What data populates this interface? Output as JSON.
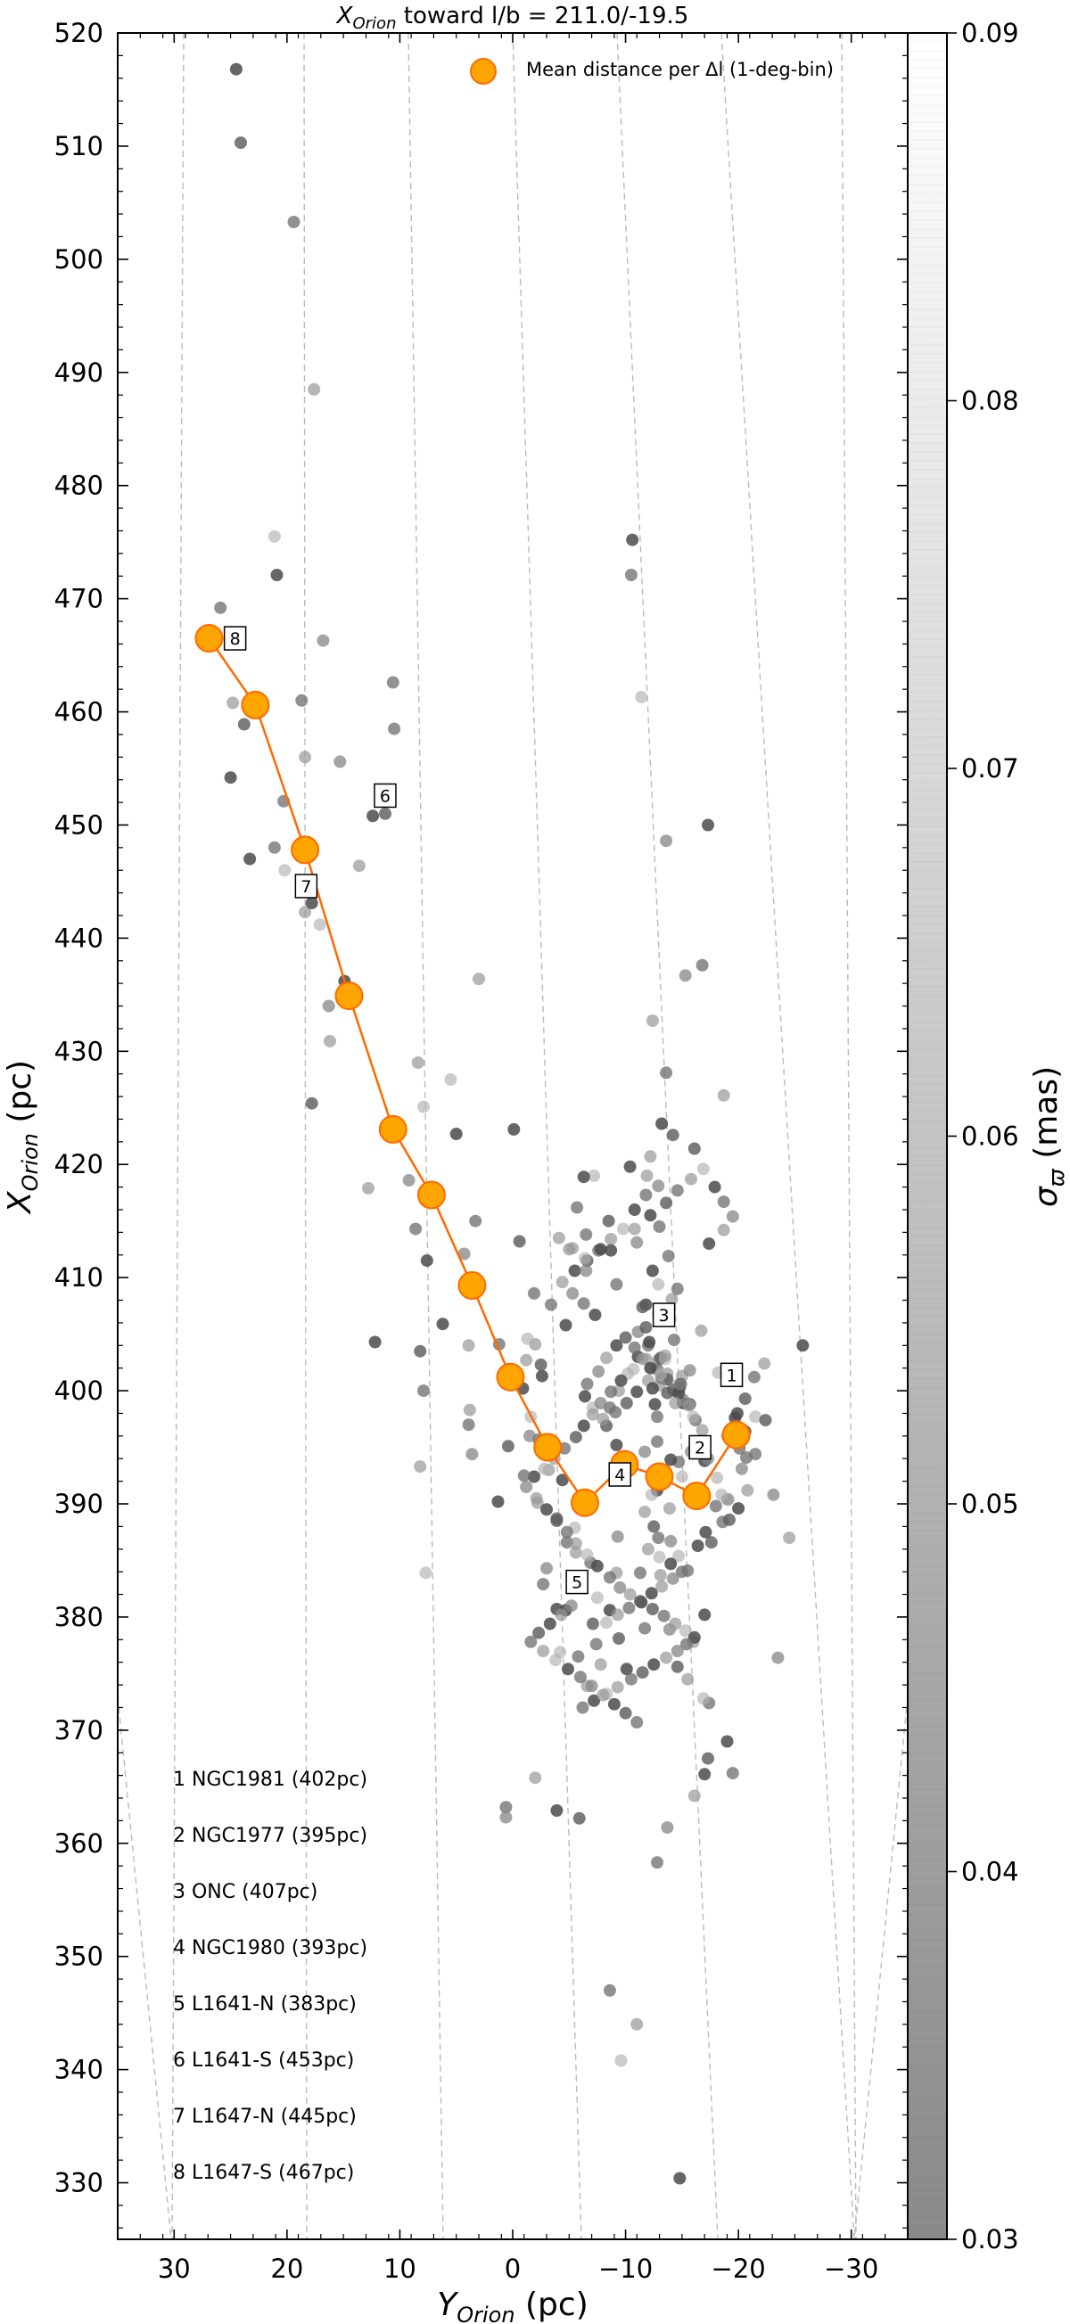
{
  "chart_data": {
    "type": "scatter",
    "title": "X_Orion toward l/b = 211.0/-19.5",
    "title_parts": {
      "pre": "X",
      "sub": "Orion",
      "post": " toward l/b = 211.0/-19.5"
    },
    "xlabel": "Y_Orion (pc)",
    "xlabel_parts": {
      "pre": "Y",
      "sub": "Orion",
      "post": " (pc)"
    },
    "ylabel": "X_Orion (pc)",
    "ylabel_parts": {
      "pre": "X",
      "sub": "Orion",
      "post": " (pc)"
    },
    "xlim": [
      35,
      -35
    ],
    "ylim": [
      325,
      520
    ],
    "x_ticks": [
      30,
      20,
      10,
      0,
      -10,
      -20,
      -30
    ],
    "x_tick_labels": [
      "30",
      "20",
      "10",
      "0",
      "−10",
      "−20",
      "−30"
    ],
    "y_ticks": [
      330,
      340,
      350,
      360,
      370,
      380,
      390,
      400,
      410,
      420,
      430,
      440,
      450,
      460,
      470,
      480,
      490,
      500,
      510,
      520
    ],
    "y_tick_labels": [
      "330",
      "340",
      "350",
      "360",
      "370",
      "380",
      "390",
      "400",
      "410",
      "420",
      "430",
      "440",
      "450",
      "460",
      "470",
      "480",
      "490",
      "500",
      "510",
      "520"
    ],
    "grid": false,
    "legend": {
      "position": "top-right",
      "label": "Mean distance per Δl (1-deg-bin)"
    },
    "colorbar": {
      "label": "σ_ϖ (mas)",
      "label_sym": "σ",
      "label_sub": "ϖ",
      "label_post": " (mas)",
      "range": [
        0.03,
        0.09
      ],
      "ticks": [
        0.03,
        0.04,
        0.05,
        0.06,
        0.07,
        0.08,
        0.09
      ],
      "tick_labels": [
        "0.03",
        "0.04",
        "0.05",
        "0.06",
        "0.07",
        "0.08",
        "0.09"
      ],
      "color_low": "#8a8a8a",
      "color_high": "#ffffff"
    },
    "mean_series": {
      "name": "Mean distance per Δl (1-deg-bin)",
      "color": "#ffa500",
      "edge_color": "#ff6a00",
      "line_color": "#ff6a00",
      "x": [
        26.9,
        22.8,
        18.4,
        14.5,
        10.6,
        7.2,
        3.6,
        0.2,
        -3.1,
        -6.4,
        -9.9,
        -13.0,
        -16.3,
        -19.8
      ],
      "y": [
        466.5,
        460.6,
        447.8,
        434.9,
        423.1,
        417.3,
        409.3,
        401.2,
        395.0,
        390.1,
        393.5,
        392.4,
        390.7,
        396.1
      ]
    },
    "region_markers": [
      {
        "id": "1",
        "x": -19.4,
        "y": 401.4
      },
      {
        "id": "2",
        "x": -16.6,
        "y": 395.0
      },
      {
        "id": "3",
        "x": -13.4,
        "y": 406.7
      },
      {
        "id": "4",
        "x": -9.5,
        "y": 392.6
      },
      {
        "id": "5",
        "x": -5.7,
        "y": 383.1
      },
      {
        "id": "6",
        "x": 11.3,
        "y": 452.6
      },
      {
        "id": "7",
        "x": 18.3,
        "y": 444.6
      },
      {
        "id": "8",
        "x": 24.6,
        "y": 466.5
      }
    ],
    "region_list": [
      "1 NGC1981 (402pc)",
      "2 NGC1977 (395pc)",
      "3 ONC (407pc)",
      "4 NGC1980 (393pc)",
      "5 L1641-N (383pc)",
      "6 L1641-S (453pc)",
      "7 L1647-N (445pc)",
      "8 L1647-S (467pc)"
    ],
    "stars": {
      "x": [
        24.5,
        24.1,
        19.4,
        17.6,
        21.1,
        20.9,
        25.9,
        16.8,
        24.8,
        25.0,
        23.8,
        18.7,
        18.4,
        20.2,
        23.3,
        21.1,
        15.3,
        13.6,
        12.4,
        11.3,
        10.6,
        18.4,
        17.1,
        17.8,
        20.3,
        16.3,
        16.2,
        14.9,
        17.8,
        10.5,
        8.4,
        7.9,
        7.6,
        8.6,
        9.2,
        12.8,
        12.2,
        8.2,
        7.9,
        8.2,
        7.7,
        6.2,
        3.9,
        3.6,
        3.8,
        1.3,
        0.4,
        -2.3,
        3.0,
        5.5,
        5.0,
        3.3,
        4.3,
        3.9,
        -0.1,
        -0.6,
        -1.9,
        -1.2,
        -1.6,
        -2.6,
        -3.4,
        -1.5,
        -3.2,
        -4.4,
        -3.9,
        -4.8,
        -2.2,
        -5.5,
        -6.9,
        -6.9,
        -9.3,
        -9.2,
        -8.6,
        -9.4,
        -7.4,
        -6.6,
        -4.2,
        -3.9,
        -2.7,
        -3.0,
        -5.6,
        -4.7,
        -7.1,
        -5.8,
        -7.8,
        -7.5,
        -10.1,
        -11.3,
        -13.9,
        -16.0,
        -17.0,
        -14.6,
        -11.7,
        -13.1,
        -14.7,
        -16.4,
        -15.5,
        -14.0,
        -13.9,
        -12.8,
        -12.5,
        -12.9,
        -11.7,
        -12.3,
        -13.1,
        -14.7,
        -15.8,
        -16.4,
        -17.1,
        -17.6,
        -18.6,
        -19.1,
        -18.1,
        -17.0,
        -16.6,
        -17.3,
        -19.0,
        -19.7,
        -20.6,
        -21.4,
        -22.3,
        -21.5,
        -20.6,
        -20.1,
        -20.3,
        -20.8,
        -20.0,
        -19.2,
        -18.0,
        -16.5,
        -15.0,
        -14.0,
        -12.8,
        -11.7,
        -10.3,
        -9.2,
        -8.3,
        -8.6,
        -9.4,
        -10.2,
        -11.1,
        -12.0,
        -12.9,
        -13.7,
        -14.8,
        -15.7,
        -16.2,
        -16.8,
        -16.0,
        -15.1,
        -14.3,
        -13.3,
        -12.0,
        -11.0,
        -10.1,
        -9.1,
        -8.0,
        -7.1,
        -6.4,
        -6.6,
        -7.6,
        -8.3,
        -9.2,
        -10.0,
        -10.8,
        -11.5,
        -12.3,
        -13.2,
        -14.2,
        -15.1,
        -15.6,
        -14.7,
        -13.7,
        -12.8,
        -11.8,
        -10.7,
        -9.6,
        -8.7,
        -7.8,
        -7.1,
        -6.3,
        -5.6,
        -4.6,
        -3.7,
        -2.8,
        -1.9,
        -1.0,
        -1.2,
        -2.1,
        -3.0,
        -3.9,
        -4.8,
        -5.6,
        -6.6,
        -7.5,
        -8.6,
        -9.5,
        -10.4,
        -11.4,
        -12.4,
        -13.4,
        -14.4,
        -15.3,
        -16.1,
        -15.4,
        -14.6,
        -13.6,
        -12.5,
        -11.5,
        -10.5,
        -9.3,
        -8.3,
        -7.2,
        -6.2,
        -5.2,
        -4.3,
        -3.3,
        -2.3,
        -1.6,
        -2.7,
        -3.8,
        -4.9,
        -6.0,
        -7.0,
        -8.0,
        -9.0,
        -10.0,
        -11.0,
        -12.0,
        -13.0,
        -14.0,
        -15.0,
        -14.2,
        -13.2,
        -12.3,
        -11.3,
        -10.3,
        -9.3,
        -8.3,
        -7.3,
        -6.3,
        -5.3,
        -4.4,
        -5.5,
        -6.6,
        -7.6,
        -8.7,
        -9.8,
        -10.8,
        -11.8,
        -12.9,
        -11.9,
        -10.4,
        -8.5,
        -6.5,
        -5.3,
        -6.4,
        -7.8,
        -9.2,
        -11.1,
        -12.9,
        -11.8,
        -13.1,
        -14.3,
        -15.0,
        -13.5,
        -12.2,
        -13.6,
        -14.8,
        -13.0,
        -12.6,
        -13.7,
        -12.8,
        -14.4,
        -13.1,
        -12.4,
        -14.9,
        -15.7,
        -13.5,
        -12.1,
        -11.8,
        -13.3,
        -14.1,
        -12.9,
        -12.4,
        -13.8,
        -11.0,
        -10.8,
        -12.2,
        -13.6,
        -14.6,
        -15.8,
        -16.9,
        -17.9,
        -18.7,
        -19.5,
        -18.7,
        -17.4,
        -16.1,
        -14.6,
        -16.7,
        -18.2,
        -19.9,
        -21.5,
        -23.1,
        -24.5,
        -25.7,
        -22.4,
        -20.7,
        -19.0,
        -18.5,
        -17.3,
        -16.8,
        -15.3,
        -18.7,
        -13.2,
        -14.2,
        -13.6,
        -12.4,
        -11.4,
        -10.6,
        -10.5,
        -13.6,
        -4.1,
        -8.7,
        -11.5,
        -13.0,
        -12.2,
        -7.2,
        -6.3,
        -5.7,
        -6.5,
        -5.0,
        -4.7,
        -2.5,
        1.2,
        -2.0,
        -1.3,
        -0.9,
        0.6,
        0.6,
        -2.0,
        -3.9,
        -5.9,
        -8.6,
        -11.0,
        -9.6,
        -14.8,
        -12.8,
        -13.7,
        -16.1,
        -17.0,
        -17.3,
        -17.4,
        -15.5,
        -16.9,
        -19.0,
        -19.5,
        -23.5
      ],
      "y": [
        516.8,
        510.3,
        503.3,
        488.5,
        475.5,
        472.1,
        469.2,
        466.3,
        460.8,
        454.2,
        458.9,
        461.0,
        456.0,
        446.0,
        447.0,
        448.0,
        455.6,
        446.4,
        450.8,
        451.0,
        462.6,
        442.3,
        441.2,
        443.1,
        452.1,
        434.0,
        430.9,
        436.2,
        425.4,
        458.5,
        429.0,
        425.1,
        411.5,
        414.3,
        418.6,
        417.9,
        404.3,
        403.5,
        400.0,
        393.3,
        383.9,
        405.9,
        397.0,
        394.4,
        398.3,
        390.2,
        395.1,
        395.7,
        436.4,
        427.5,
        422.7,
        415.0,
        412.1,
        404.0,
        423.1,
        413.2,
        408.6,
        402.7,
        397.7,
        401.3,
        407.6,
        396.0,
        393.0,
        392.1,
        388.7,
        386.6,
        390.1,
        387.9,
        390.6,
        384.8,
        387.1,
        383.9,
        380.6,
        378.1,
        377.6,
        373.9,
        376.9,
        380.7,
        382.9,
        384.3,
        385.7,
        380.6,
        379.4,
        376.5,
        375.8,
        381.7,
        375.4,
        383.9,
        378.9,
        377.8,
        380.2,
        375.6,
        379.0,
        383.7,
        385.4,
        386.3,
        384.1,
        386.7,
        389.6,
        391.2,
        388.0,
        387.0,
        389.3,
        390.8,
        392.2,
        393.7,
        394.6,
        390.4,
        387.5,
        386.6,
        388.4,
        390.4,
        392.3,
        393.8,
        395.5,
        394.0,
        396.0,
        397.6,
        399.3,
        401.2,
        402.4,
        397.7,
        396.4,
        394.9,
        393.1,
        391.2,
        389.6,
        388.6,
        389.8,
        391.0,
        392.4,
        393.9,
        395.5,
        394.6,
        393.7,
        395.2,
        396.9,
        398.5,
        400.0,
        401.5,
        403.0,
        404.0,
        402.7,
        401.5,
        400.3,
        398.8,
        397.4,
        396.5,
        397.7,
        398.9,
        400.0,
        401.1,
        400.9,
        399.9,
        398.9,
        398.1,
        397.5,
        398.5,
        399.5,
        400.6,
        401.7,
        402.9,
        404.0,
        404.7,
        403.8,
        402.8,
        402.0,
        401.1,
        400.1,
        399.2,
        398.7,
        399.8,
        401.0,
        401.9,
        402.8,
        401.9,
        400.9,
        399.9,
        398.9,
        397.9,
        396.9,
        395.9,
        394.9,
        394.0,
        393.1,
        392.4,
        392.5,
        391.5,
        390.5,
        389.5,
        388.5,
        387.5,
        386.5,
        385.5,
        384.5,
        383.5,
        382.6,
        382.0,
        381.3,
        380.7,
        380.1,
        379.4,
        378.8,
        378.2,
        377.6,
        377.0,
        376.4,
        375.8,
        375.1,
        374.5,
        373.8,
        373.2,
        372.6,
        372.0,
        381.0,
        380.2,
        379.4,
        378.6,
        377.8,
        377.0,
        376.2,
        375.4,
        374.7,
        373.9,
        373.1,
        372.3,
        371.5,
        370.7,
        386.0,
        385.3,
        384.7,
        384.0,
        383.4,
        382.7,
        382.1,
        381.4,
        380.8,
        380.2,
        379.5,
        406.7,
        407.7,
        408.6,
        409.6,
        410.6,
        411.5,
        412.4,
        413.4,
        414.3,
        416.0,
        417.3,
        418.1,
        419.0,
        419.8,
        415.0,
        413.8,
        412.6,
        411.7,
        412.5,
        409.4,
        405.2,
        406.8,
        407.6,
        402.9,
        404.5,
        401.3,
        402.8,
        402.0,
        401.0,
        400.6,
        400.5,
        398.8,
        399.8,
        397.7,
        398.9,
        401.4,
        400.2,
        400.6,
        401.8,
        403.1,
        404.3,
        405.6,
        406.8,
        408.1,
        409.4,
        410.6,
        411.9,
        413.1,
        414.3,
        415.5,
        416.6,
        417.7,
        418.7,
        419.6,
        418.0,
        416.7,
        415.4,
        414.2,
        413.0,
        421.4,
        409.0,
        405.3,
        401.6,
        398.0,
        394.4,
        390.8,
        387.0,
        404.0,
        397.4,
        394.1,
        390.4,
        390.8,
        450.0,
        437.6,
        436.7,
        426.1,
        423.6,
        422.6,
        428.1,
        432.7,
        461.3,
        475.2,
        472.1,
        448.6,
        413.5,
        412.4,
        407.4,
        414.5,
        420.7,
        419.0,
        418.9,
        416.2,
        410.6,
        412.5,
        405.8,
        402.3,
        404.1,
        404.1,
        404.6,
        400.2,
        363.2,
        362.3,
        365.8,
        362.9,
        362.2,
        347.0,
        344.0,
        340.8,
        330.4,
        358.3,
        361.4,
        364.2,
        366.1,
        367.5,
        372.4,
        374.5,
        372.8,
        369.0,
        366.2,
        376.4
      ]
    },
    "star_sigma_levels": [
      0.04,
      0.046,
      0.052,
      0.058,
      0.064,
      0.072
    ]
  }
}
